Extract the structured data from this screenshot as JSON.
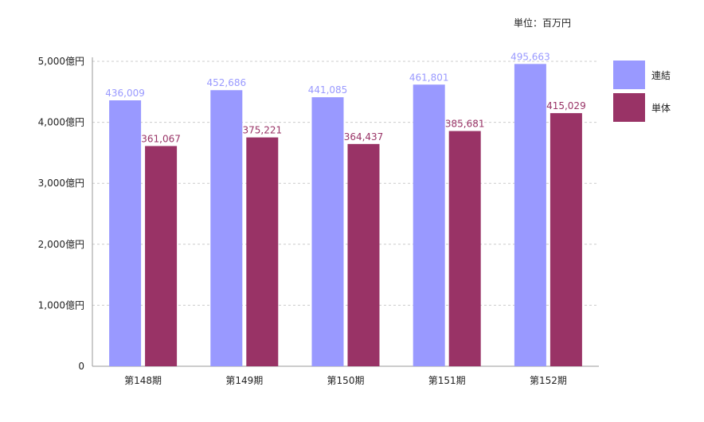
{
  "unit_note": "単位：百万円",
  "colors": {
    "series_1": "#9999ff",
    "series_2": "#993366",
    "grid": "#cccccc",
    "axis": "#999999"
  },
  "chart_data": {
    "type": "bar",
    "categories": [
      "第148期",
      "第149期",
      "第150期",
      "第151期",
      "第152期"
    ],
    "series": [
      {
        "name": "連結",
        "values": [
          436009,
          452686,
          441085,
          461801,
          495663
        ],
        "labels": [
          "436,009",
          "452,686",
          "441,085",
          "461,801",
          "495,663"
        ]
      },
      {
        "name": "単体",
        "values": [
          361067,
          375221,
          364437,
          385681,
          415029
        ],
        "labels": [
          "361,067",
          "375,221",
          "364,437",
          "385,681",
          "415,029"
        ]
      }
    ],
    "y_ticks": [
      0,
      100000,
      200000,
      300000,
      400000,
      500000
    ],
    "y_tick_labels": [
      "0",
      "1,000億円",
      "2,000億円",
      "3,000億円",
      "4,000億円",
      "5,000億円"
    ],
    "ylim": [
      0,
      500000
    ],
    "grid": true,
    "legend": "right"
  }
}
